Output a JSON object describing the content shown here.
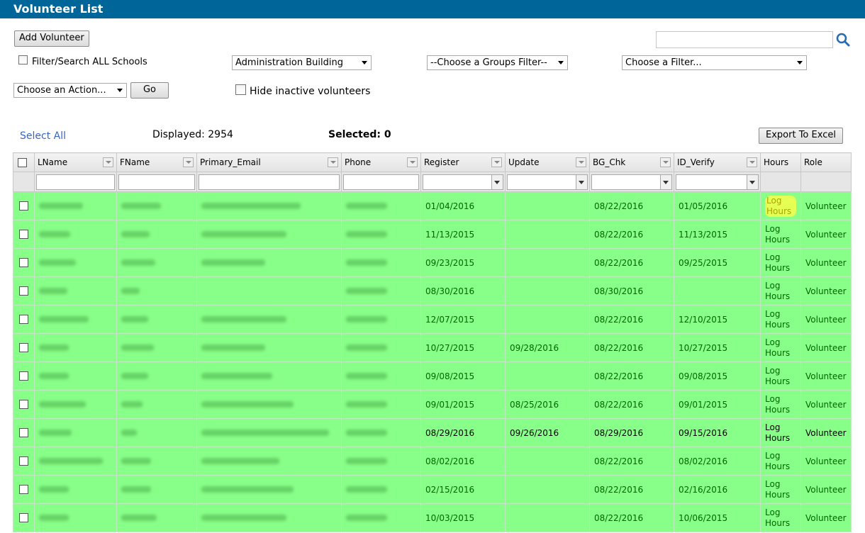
{
  "window": {
    "title": "Volunteer List"
  },
  "toolbar": {
    "add_volunteer": "Add Volunteer",
    "filter_all_schools": "Filter/Search ALL Schools",
    "school_select": "Administration Building",
    "groups_filter": "--Choose a Groups Filter--",
    "filter_select": "Choose a Filter...",
    "action_select": "Choose an Action...",
    "go": "Go",
    "hide_inactive": "Hide inactive volunteers",
    "search_value": ""
  },
  "summary": {
    "select_all": "Select All",
    "displayed": "Displayed: 2954",
    "selected": "Selected: 0",
    "export": "Export To Excel"
  },
  "columns": [
    "LName",
    "FName",
    "Primary_Email",
    "Phone",
    "Register",
    "Update",
    "BG_Chk",
    "ID_Verify",
    "Hours",
    "Role"
  ],
  "rows": [
    {
      "register": "01/04/2016",
      "update": "",
      "bg_chk": "08/22/2016",
      "id_verify": "01/05/2016",
      "hours": "Log Hours",
      "role": "Volunteer"
    },
    {
      "register": "11/13/2015",
      "update": "",
      "bg_chk": "08/22/2016",
      "id_verify": "11/13/2015",
      "hours": "Log Hours",
      "role": "Volunteer"
    },
    {
      "register": "09/23/2015",
      "update": "",
      "bg_chk": "08/22/2016",
      "id_verify": "09/25/2015",
      "hours": "Log Hours",
      "role": "Volunteer"
    },
    {
      "register": "08/30/2016",
      "update": "",
      "bg_chk": "08/30/2016",
      "id_verify": "",
      "hours": "Log Hours",
      "role": "Volunteer"
    },
    {
      "register": "12/07/2015",
      "update": "",
      "bg_chk": "08/22/2016",
      "id_verify": "12/10/2015",
      "hours": "Log Hours",
      "role": "Volunteer"
    },
    {
      "register": "10/27/2015",
      "update": "09/28/2016",
      "bg_chk": "08/22/2016",
      "id_verify": "10/27/2015",
      "hours": "Log Hours",
      "role": "Volunteer"
    },
    {
      "register": "09/08/2015",
      "update": "",
      "bg_chk": "08/22/2016",
      "id_verify": "09/08/2015",
      "hours": "Log Hours",
      "role": "Volunteer"
    },
    {
      "register": "09/01/2015",
      "update": "08/25/2016",
      "bg_chk": "08/22/2016",
      "id_verify": "09/01/2015",
      "hours": "Log Hours",
      "role": "Volunteer"
    },
    {
      "register": "08/29/2016",
      "update": "09/26/2016",
      "bg_chk": "08/29/2016",
      "id_verify": "09/15/2016",
      "hours": "Log Hours",
      "role": "Volunteer"
    },
    {
      "register": "08/02/2016",
      "update": "",
      "bg_chk": "08/22/2016",
      "id_verify": "08/02/2016",
      "hours": "Log Hours",
      "role": "Volunteer"
    },
    {
      "register": "02/15/2016",
      "update": "",
      "bg_chk": "08/22/2016",
      "id_verify": "02/16/2016",
      "hours": "Log Hours",
      "role": "Volunteer"
    },
    {
      "register": "10/03/2015",
      "update": "",
      "bg_chk": "08/22/2016",
      "id_verify": "10/06/2015",
      "hours": "Log Hours",
      "role": "Volunteer"
    }
  ],
  "colors": {
    "titlebar": "#006699",
    "row_bg": "#88ff88",
    "link": "#3366cc"
  }
}
